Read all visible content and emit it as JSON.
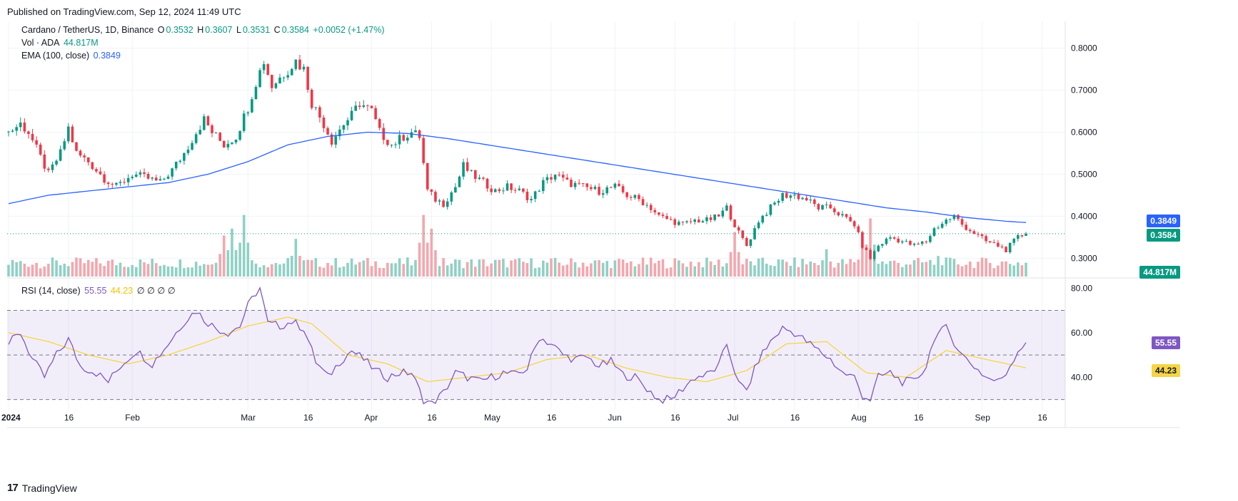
{
  "header": {
    "published": "Published on TradingView.com, Sep 12, 2024 11:49 UTC"
  },
  "legend": {
    "symbol": "Cardano / TetherUS, 1D, Binance",
    "o_label": "O",
    "o": "0.3532",
    "h_label": "H",
    "h": "0.3607",
    "l_label": "L",
    "l": "0.3531",
    "c_label": "C",
    "c": "0.3584",
    "change": "+0.0052 (+1.47%)",
    "vol_label": "Vol · ADA",
    "vol": "44.817M",
    "ema_label": "EMA (100, close)",
    "ema": "0.3849",
    "rsi_label": "RSI (14, close)",
    "rsi": "55.55",
    "rsi_ma": "44.23",
    "rsi_extra": "∅ ∅ ∅ ∅"
  },
  "price_tags": {
    "ema": "0.3849",
    "close": "0.3584",
    "volume": "44.817M",
    "rsi": "55.55",
    "rsi_ma": "44.23"
  },
  "colors": {
    "up": "#089981",
    "down": "#f23645",
    "ema": "#2962ff",
    "rsi": "#7e57c2",
    "rsi_ma": "#f5d547",
    "vol_up": "#8fd1c4",
    "vol_down": "#f5a6ad"
  },
  "footer": {
    "brand": "TradingView"
  },
  "chart_data": {
    "type": "line",
    "title": "Cardano / TetherUS, 1D, Binance",
    "price_axis": {
      "ticks": [
        "0.8000",
        "0.7000",
        "0.6000",
        "0.5000",
        "0.4000",
        "0.3000"
      ],
      "range": [
        0.27,
        0.83
      ]
    },
    "rsi_axis": {
      "ticks": [
        "80.00",
        "60.00",
        "40.00"
      ],
      "range": [
        27,
        82
      ],
      "bands": [
        70,
        50,
        30
      ]
    },
    "x_ticks": [
      "2024",
      "16",
      "Feb",
      "Mar",
      "16",
      "Apr",
      "16",
      "May",
      "16",
      "Jun",
      "16",
      "Jul",
      "16",
      "Aug",
      "16",
      "Sep",
      "16"
    ],
    "x_tick_days": [
      0,
      15,
      31,
      60,
      75,
      91,
      106,
      121,
      136,
      152,
      167,
      182,
      197,
      213,
      228,
      244,
      259
    ],
    "last_day": 255,
    "close_anchors": [
      [
        0,
        0.6
      ],
      [
        3,
        0.62
      ],
      [
        5,
        0.6
      ],
      [
        8,
        0.54
      ],
      [
        10,
        0.5
      ],
      [
        13,
        0.55
      ],
      [
        15,
        0.61
      ],
      [
        17,
        0.55
      ],
      [
        20,
        0.53
      ],
      [
        24,
        0.49
      ],
      [
        27,
        0.47
      ],
      [
        31,
        0.5
      ],
      [
        35,
        0.49
      ],
      [
        38,
        0.48
      ],
      [
        41,
        0.51
      ],
      [
        44,
        0.55
      ],
      [
        47,
        0.6
      ],
      [
        49,
        0.63
      ],
      [
        51,
        0.6
      ],
      [
        54,
        0.57
      ],
      [
        57,
        0.59
      ],
      [
        60,
        0.66
      ],
      [
        62,
        0.72
      ],
      [
        64,
        0.77
      ],
      [
        66,
        0.71
      ],
      [
        69,
        0.74
      ],
      [
        72,
        0.77
      ],
      [
        74,
        0.75
      ],
      [
        76,
        0.67
      ],
      [
        79,
        0.62
      ],
      [
        81,
        0.58
      ],
      [
        84,
        0.62
      ],
      [
        86,
        0.64
      ],
      [
        88,
        0.67
      ],
      [
        91,
        0.65
      ],
      [
        93,
        0.6
      ],
      [
        96,
        0.57
      ],
      [
        99,
        0.59
      ],
      [
        101,
        0.6
      ],
      [
        103,
        0.59
      ],
      [
        105,
        0.46
      ],
      [
        107,
        0.44
      ],
      [
        109,
        0.43
      ],
      [
        112,
        0.47
      ],
      [
        114,
        0.52
      ],
      [
        116,
        0.5
      ],
      [
        119,
        0.48
      ],
      [
        122,
        0.46
      ],
      [
        125,
        0.47
      ],
      [
        128,
        0.46
      ],
      [
        131,
        0.44
      ],
      [
        134,
        0.48
      ],
      [
        137,
        0.5
      ],
      [
        140,
        0.48
      ],
      [
        144,
        0.47
      ],
      [
        148,
        0.46
      ],
      [
        152,
        0.47
      ],
      [
        155,
        0.45
      ],
      [
        158,
        0.44
      ],
      [
        161,
        0.42
      ],
      [
        163,
        0.4
      ],
      [
        166,
        0.39
      ],
      [
        169,
        0.38
      ],
      [
        172,
        0.39
      ],
      [
        175,
        0.39
      ],
      [
        178,
        0.4
      ],
      [
        180,
        0.42
      ],
      [
        183,
        0.36
      ],
      [
        185,
        0.33
      ],
      [
        188,
        0.39
      ],
      [
        191,
        0.42
      ],
      [
        194,
        0.45
      ],
      [
        197,
        0.45
      ],
      [
        200,
        0.44
      ],
      [
        203,
        0.42
      ],
      [
        206,
        0.42
      ],
      [
        209,
        0.4
      ],
      [
        212,
        0.38
      ],
      [
        214,
        0.33
      ],
      [
        216,
        0.3
      ],
      [
        218,
        0.33
      ],
      [
        221,
        0.35
      ],
      [
        224,
        0.34
      ],
      [
        227,
        0.33
      ],
      [
        230,
        0.34
      ],
      [
        232,
        0.37
      ],
      [
        235,
        0.39
      ],
      [
        237,
        0.4
      ],
      [
        239,
        0.38
      ],
      [
        242,
        0.36
      ],
      [
        245,
        0.34
      ],
      [
        248,
        0.33
      ],
      [
        250,
        0.32
      ],
      [
        253,
        0.35
      ],
      [
        255,
        0.3584
      ]
    ],
    "ema_anchors": [
      [
        0,
        0.43
      ],
      [
        10,
        0.45
      ],
      [
        20,
        0.46
      ],
      [
        30,
        0.47
      ],
      [
        40,
        0.48
      ],
      [
        50,
        0.5
      ],
      [
        60,
        0.53
      ],
      [
        70,
        0.57
      ],
      [
        80,
        0.59
      ],
      [
        90,
        0.6
      ],
      [
        100,
        0.597
      ],
      [
        110,
        0.585
      ],
      [
        120,
        0.57
      ],
      [
        130,
        0.555
      ],
      [
        140,
        0.54
      ],
      [
        150,
        0.525
      ],
      [
        160,
        0.51
      ],
      [
        170,
        0.495
      ],
      [
        180,
        0.48
      ],
      [
        190,
        0.465
      ],
      [
        200,
        0.45
      ],
      [
        210,
        0.435
      ],
      [
        220,
        0.42
      ],
      [
        230,
        0.41
      ],
      [
        240,
        0.397
      ],
      [
        250,
        0.388
      ],
      [
        255,
        0.3849
      ]
    ],
    "rsi_anchors": [
      [
        0,
        55
      ],
      [
        3,
        60
      ],
      [
        6,
        48
      ],
      [
        9,
        40
      ],
      [
        12,
        50
      ],
      [
        15,
        57
      ],
      [
        18,
        45
      ],
      [
        22,
        42
      ],
      [
        25,
        38
      ],
      [
        28,
        45
      ],
      [
        32,
        52
      ],
      [
        36,
        46
      ],
      [
        40,
        55
      ],
      [
        44,
        65
      ],
      [
        47,
        70
      ],
      [
        49,
        66
      ],
      [
        52,
        62
      ],
      [
        55,
        60
      ],
      [
        58,
        63
      ],
      [
        60,
        72
      ],
      [
        62,
        78
      ],
      [
        63,
        80
      ],
      [
        65,
        64
      ],
      [
        68,
        63
      ],
      [
        71,
        65
      ],
      [
        74,
        62
      ],
      [
        77,
        47
      ],
      [
        80,
        40
      ],
      [
        83,
        47
      ],
      [
        86,
        52
      ],
      [
        89,
        48
      ],
      [
        92,
        43
      ],
      [
        95,
        40
      ],
      [
        98,
        42
      ],
      [
        101,
        42
      ],
      [
        104,
        30
      ],
      [
        106,
        28
      ],
      [
        109,
        33
      ],
      [
        112,
        42
      ],
      [
        115,
        40
      ],
      [
        118,
        38
      ],
      [
        121,
        40
      ],
      [
        124,
        42
      ],
      [
        127,
        41
      ],
      [
        130,
        44
      ],
      [
        133,
        58
      ],
      [
        136,
        55
      ],
      [
        139,
        50
      ],
      [
        142,
        48
      ],
      [
        145,
        49
      ],
      [
        148,
        45
      ],
      [
        151,
        47
      ],
      [
        154,
        41
      ],
      [
        157,
        40
      ],
      [
        160,
        35
      ],
      [
        163,
        30
      ],
      [
        166,
        30
      ],
      [
        169,
        35
      ],
      [
        172,
        40
      ],
      [
        175,
        41
      ],
      [
        178,
        45
      ],
      [
        180,
        55
      ],
      [
        183,
        37
      ],
      [
        185,
        34
      ],
      [
        188,
        48
      ],
      [
        191,
        56
      ],
      [
        194,
        62
      ],
      [
        197,
        60
      ],
      [
        200,
        56
      ],
      [
        203,
        52
      ],
      [
        206,
        48
      ],
      [
        209,
        42
      ],
      [
        212,
        40
      ],
      [
        214,
        32
      ],
      [
        216,
        30
      ],
      [
        218,
        40
      ],
      [
        221,
        42
      ],
      [
        224,
        38
      ],
      [
        227,
        38
      ],
      [
        230,
        45
      ],
      [
        232,
        58
      ],
      [
        235,
        62
      ],
      [
        237,
        56
      ],
      [
        239,
        50
      ],
      [
        242,
        45
      ],
      [
        245,
        40
      ],
      [
        248,
        38
      ],
      [
        250,
        42
      ],
      [
        253,
        52
      ],
      [
        255,
        55.55
      ]
    ],
    "rsi_ma_anchors": [
      [
        0,
        60
      ],
      [
        10,
        56
      ],
      [
        20,
        50
      ],
      [
        30,
        46
      ],
      [
        40,
        50
      ],
      [
        50,
        56
      ],
      [
        60,
        63
      ],
      [
        70,
        67
      ],
      [
        76,
        64
      ],
      [
        85,
        50
      ],
      [
        95,
        46
      ],
      [
        105,
        38
      ],
      [
        115,
        40
      ],
      [
        125,
        42
      ],
      [
        135,
        48
      ],
      [
        145,
        50
      ],
      [
        155,
        44
      ],
      [
        165,
        40
      ],
      [
        175,
        38
      ],
      [
        185,
        43
      ],
      [
        195,
        55
      ],
      [
        205,
        56
      ],
      [
        215,
        42
      ],
      [
        225,
        40
      ],
      [
        235,
        52
      ],
      [
        245,
        48
      ],
      [
        255,
        44.23
      ]
    ],
    "volume_spikes": [
      [
        54,
        0.6
      ],
      [
        56,
        0.7
      ],
      [
        59,
        0.9
      ],
      [
        72,
        0.55
      ],
      [
        104,
        0.9
      ],
      [
        106,
        0.7
      ],
      [
        182,
        0.65
      ],
      [
        205,
        0.4
      ],
      [
        214,
        0.45
      ],
      [
        216,
        0.85
      ],
      [
        233,
        0.3
      ]
    ]
  }
}
